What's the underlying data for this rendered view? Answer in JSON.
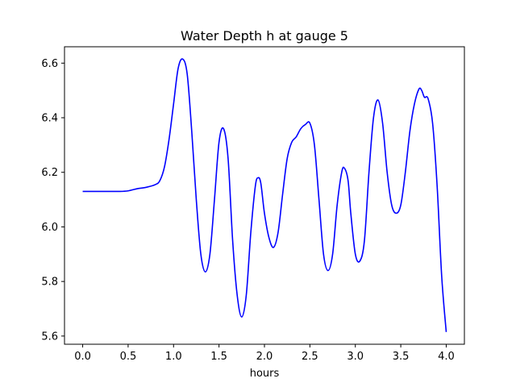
{
  "chart_data": {
    "type": "line",
    "title": "Water Depth h at gauge 5",
    "xlabel": "hours",
    "ylabel": "",
    "xlim": [
      -0.2,
      4.2
    ],
    "ylim": [
      5.57,
      6.66
    ],
    "grid": false,
    "xticks": [
      0.0,
      0.5,
      1.0,
      1.5,
      2.0,
      2.5,
      3.0,
      3.5,
      4.0
    ],
    "xtick_labels": [
      "0.0",
      "0.5",
      "1.0",
      "1.5",
      "2.0",
      "2.5",
      "3.0",
      "3.5",
      "4.0"
    ],
    "yticks": [
      5.6,
      5.8,
      6.0,
      6.2,
      6.4,
      6.6
    ],
    "ytick_labels": [
      "5.6",
      "5.8",
      "6.0",
      "6.2",
      "6.4",
      "6.6"
    ],
    "series": [
      {
        "color": "#0000ff",
        "x": [
          0.0,
          0.2,
          0.4,
          0.5,
          0.6,
          0.7,
          0.8,
          0.85,
          0.9,
          0.95,
          1.0,
          1.05,
          1.1,
          1.15,
          1.2,
          1.25,
          1.3,
          1.35,
          1.4,
          1.45,
          1.5,
          1.55,
          1.6,
          1.65,
          1.7,
          1.75,
          1.8,
          1.85,
          1.9,
          1.93,
          1.96,
          2.0,
          2.05,
          2.1,
          2.15,
          2.2,
          2.25,
          2.3,
          2.35,
          2.4,
          2.45,
          2.5,
          2.55,
          2.6,
          2.65,
          2.7,
          2.75,
          2.8,
          2.85,
          2.88,
          2.92,
          2.95,
          3.0,
          3.05,
          3.1,
          3.15,
          3.2,
          3.25,
          3.3,
          3.35,
          3.4,
          3.45,
          3.5,
          3.55,
          3.6,
          3.65,
          3.7,
          3.73,
          3.76,
          3.8,
          3.85,
          3.9,
          3.95,
          4.0
        ],
        "y": [
          6.13,
          6.13,
          6.13,
          6.132,
          6.14,
          6.145,
          6.155,
          6.17,
          6.22,
          6.32,
          6.45,
          6.58,
          6.615,
          6.56,
          6.35,
          6.1,
          5.9,
          5.835,
          5.9,
          6.1,
          6.31,
          6.36,
          6.25,
          5.95,
          5.75,
          5.67,
          5.75,
          5.98,
          6.15,
          6.18,
          6.16,
          6.05,
          5.96,
          5.925,
          5.98,
          6.12,
          6.25,
          6.31,
          6.33,
          6.36,
          6.375,
          6.38,
          6.3,
          6.1,
          5.9,
          5.84,
          5.9,
          6.08,
          6.2,
          6.215,
          6.17,
          6.05,
          5.9,
          5.875,
          5.95,
          6.2,
          6.4,
          6.465,
          6.38,
          6.2,
          6.08,
          6.05,
          6.08,
          6.2,
          6.35,
          6.45,
          6.505,
          6.5,
          6.475,
          6.47,
          6.38,
          6.15,
          5.82,
          5.615
        ]
      }
    ]
  }
}
